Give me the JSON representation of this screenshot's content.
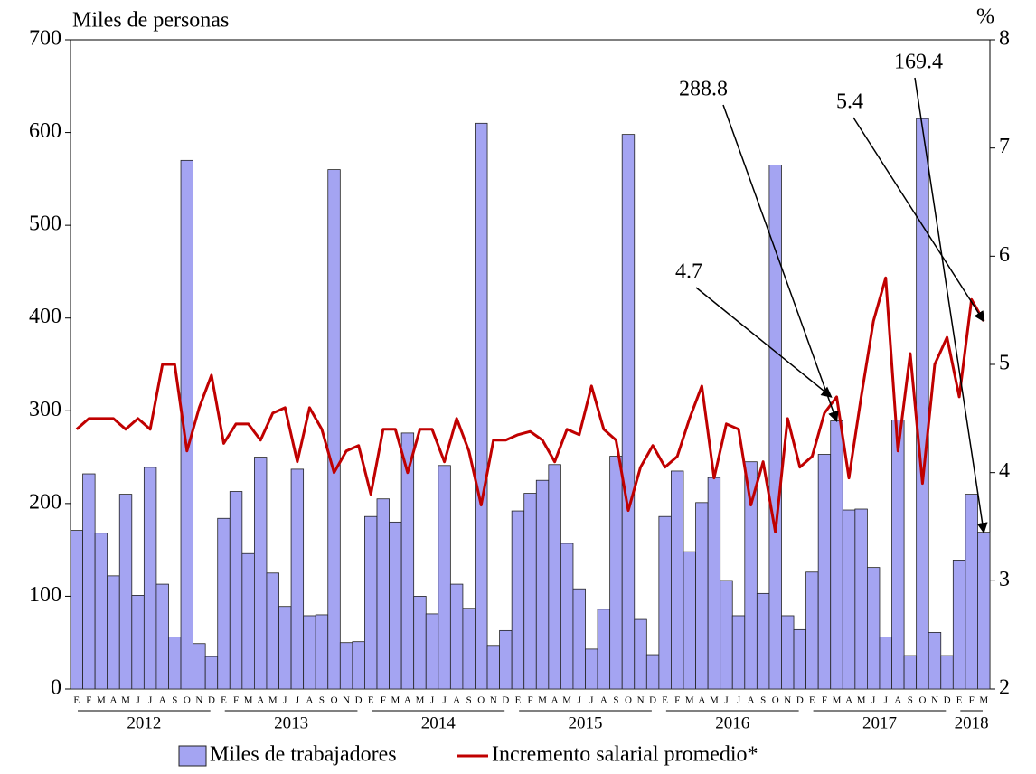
{
  "chart_data": {
    "type": "bar_line",
    "y_label": "Miles de personas",
    "y2_label": "%",
    "categories": [
      "E",
      "F",
      "M",
      "A",
      "M",
      "J",
      "J",
      "A",
      "S",
      "O",
      "N",
      "D",
      "E",
      "F",
      "M",
      "A",
      "M",
      "J",
      "J",
      "A",
      "S",
      "O",
      "N",
      "D",
      "E",
      "F",
      "M",
      "A",
      "M",
      "J",
      "J",
      "A",
      "S",
      "O",
      "N",
      "D",
      "E",
      "F",
      "M",
      "A",
      "M",
      "J",
      "J",
      "A",
      "S",
      "O",
      "N",
      "D",
      "E",
      "F",
      "M",
      "A",
      "M",
      "J",
      "J",
      "A",
      "S",
      "O",
      "N",
      "D",
      "E",
      "F",
      "M",
      "A",
      "M",
      "J",
      "J",
      "A",
      "S",
      "O",
      "N",
      "D",
      "E",
      "F",
      "M"
    ],
    "years": [
      "2012",
      "2013",
      "2014",
      "2015",
      "2016",
      "2017",
      "2018"
    ],
    "series": [
      {
        "name": "Miles de trabajadores",
        "color": "#a4a4f2",
        "axis": "y",
        "values": [
          171,
          232,
          168,
          122,
          210,
          101,
          239,
          113,
          56,
          570,
          49,
          35,
          184,
          213,
          146,
          250,
          125,
          89,
          237,
          79,
          80,
          560,
          50,
          51,
          186,
          205,
          180,
          276,
          100,
          81,
          241,
          113,
          87,
          610,
          47,
          63,
          192,
          211,
          225,
          242,
          157,
          108,
          43,
          86,
          251,
          598,
          75,
          37,
          186,
          235,
          148,
          201,
          228,
          117,
          79,
          245,
          103,
          565,
          79,
          64,
          126,
          253,
          289,
          193,
          194,
          131,
          56,
          290,
          36,
          615,
          61,
          36,
          139,
          210,
          169
        ]
      },
      {
        "name": "Incremento salarial promedio*",
        "color": "#c00000",
        "axis": "y2",
        "values": [
          4.4,
          4.5,
          4.5,
          4.5,
          4.4,
          4.5,
          4.4,
          5.0,
          5.0,
          4.2,
          4.6,
          4.9,
          4.27,
          4.45,
          4.45,
          4.3,
          4.55,
          4.6,
          4.1,
          4.6,
          4.4,
          4.0,
          4.2,
          4.25,
          3.8,
          4.4,
          4.4,
          4.0,
          4.4,
          4.4,
          4.1,
          4.5,
          4.2,
          3.7,
          4.3,
          4.3,
          4.35,
          4.38,
          4.3,
          4.1,
          4.4,
          4.35,
          4.8,
          4.4,
          4.3,
          3.65,
          4.05,
          4.25,
          4.05,
          4.15,
          4.5,
          4.8,
          3.95,
          4.45,
          4.4,
          3.7,
          4.1,
          3.45,
          4.5,
          4.05,
          4.15,
          4.55,
          4.7,
          3.95,
          4.7,
          5.4,
          5.8,
          4.2,
          5.1,
          3.9,
          5.0,
          5.25,
          4.7,
          5.6,
          5.4
        ]
      }
    ],
    "ylim": [
      0,
      700
    ],
    "yticks": [
      0,
      100,
      200,
      300,
      400,
      500,
      600,
      700
    ],
    "y2lim": [
      2,
      8
    ],
    "y2ticks": [
      2,
      3,
      4,
      5,
      6,
      7,
      8
    ],
    "annotations": [
      "288.8",
      "4.7",
      "5.4",
      "169.4"
    ]
  }
}
